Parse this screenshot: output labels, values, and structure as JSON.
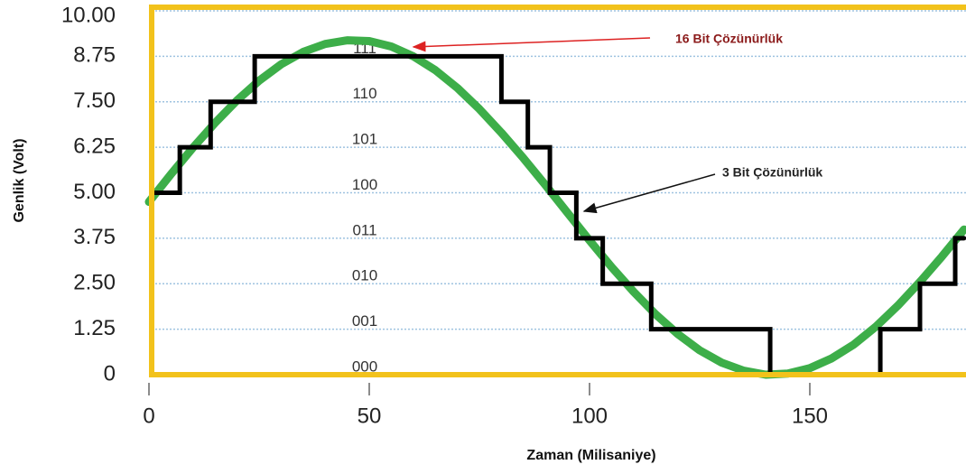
{
  "chart_data": {
    "type": "line",
    "xlabel": "Zaman (Milisaniye)",
    "ylabel": "Genlik (Volt)",
    "xlim": [
      0,
      185
    ],
    "ylim": [
      0,
      10
    ],
    "xticks": [
      0,
      50,
      100,
      150
    ],
    "yticks": [
      {
        "value": 10,
        "label": "10.00"
      },
      {
        "value": 8.75,
        "label": "8.75"
      },
      {
        "value": 7.5,
        "label": "7.50"
      },
      {
        "value": 6.25,
        "label": "6.25"
      },
      {
        "value": 5,
        "label": "5.00"
      },
      {
        "value": 3.75,
        "label": "3.75"
      },
      {
        "value": 2.5,
        "label": "2.50"
      },
      {
        "value": 1.25,
        "label": "1.25"
      },
      0
    ],
    "grid": true,
    "codes": [
      "000",
      "001",
      "010",
      "011",
      "100",
      "101",
      "110",
      "111"
    ],
    "series": [
      {
        "name": "16 Bit Çözünürlük",
        "color": "#3dae49",
        "x": [
          0,
          5,
          10,
          15,
          20,
          25,
          30,
          35,
          40,
          45,
          50,
          55,
          60,
          65,
          70,
          75,
          80,
          85,
          90,
          95,
          100,
          105,
          110,
          115,
          120,
          125,
          130,
          135,
          140,
          145,
          150,
          155,
          160,
          165,
          170,
          175,
          180,
          185
        ],
        "values": [
          4.75,
          5.51,
          6.24,
          6.92,
          7.54,
          8.08,
          8.53,
          8.87,
          9.09,
          9.19,
          9.17,
          9.02,
          8.75,
          8.37,
          7.88,
          7.3,
          6.65,
          5.95,
          5.21,
          4.45,
          3.69,
          2.96,
          2.28,
          1.66,
          1.12,
          0.67,
          0.33,
          0.11,
          0.0,
          0.03,
          0.18,
          0.45,
          0.83,
          1.32,
          1.9,
          2.55,
          3.25,
          3.99
        ]
      },
      {
        "name": "3 Bit Çözünürlük",
        "color": "#000000",
        "x": [
          1,
          7,
          7,
          14,
          14,
          24,
          24,
          80,
          80,
          86,
          86,
          91,
          91,
          97,
          97,
          103,
          103,
          114,
          114,
          141,
          141,
          166,
          166,
          175,
          175,
          183,
          183,
          185
        ],
        "values": [
          5,
          5,
          6.25,
          6.25,
          7.5,
          7.5,
          8.75,
          8.75,
          7.5,
          7.5,
          6.25,
          6.25,
          5,
          5,
          3.75,
          3.75,
          2.5,
          2.5,
          1.25,
          1.25,
          0,
          0,
          1.25,
          1.25,
          2.5,
          2.5,
          3.75,
          3.75
        ]
      }
    ]
  }
}
